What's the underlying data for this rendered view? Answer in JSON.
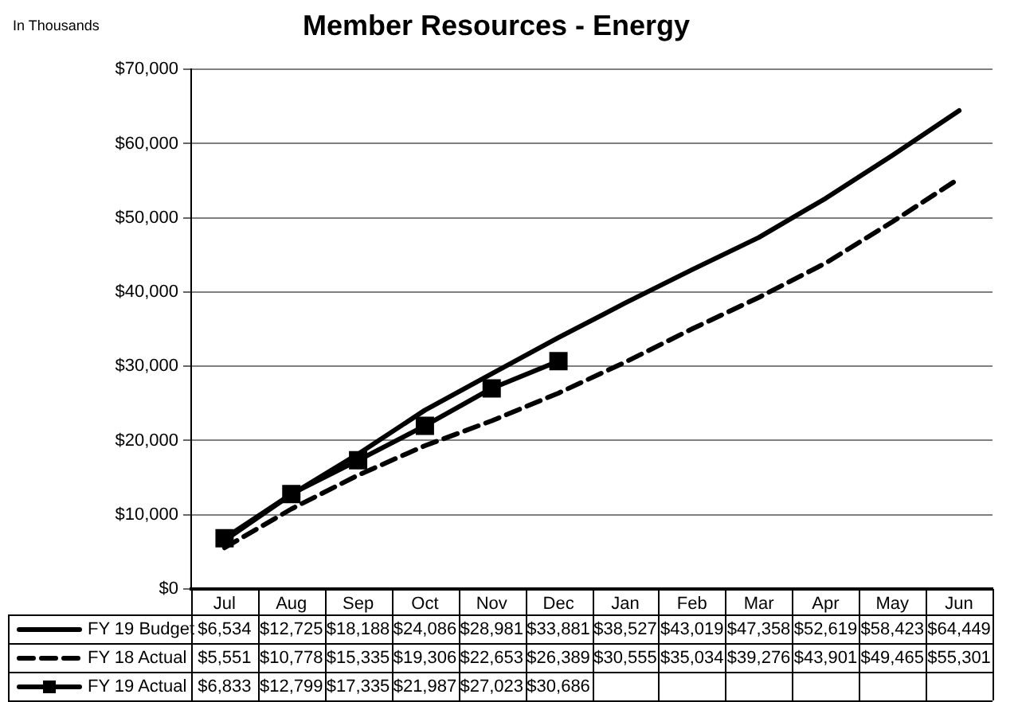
{
  "chart_data": {
    "type": "line",
    "title": "Member Resources - Energy",
    "annotations": [
      "In Thousands"
    ],
    "categories": [
      "Jul",
      "Aug",
      "Sep",
      "Oct",
      "Nov",
      "Dec",
      "Jan",
      "Feb",
      "Mar",
      "Apr",
      "May",
      "Jun"
    ],
    "series": [
      {
        "name": "FY 19 Budget",
        "color": "#000000",
        "line_style": "solid",
        "marker": "none",
        "values": [
          6534,
          12725,
          18188,
          24086,
          28981,
          33881,
          38527,
          43019,
          47358,
          52619,
          58423,
          64449
        ],
        "value_labels": [
          "$6,534",
          "$12,725",
          "$18,188",
          "$24,086",
          "$28,981",
          "$33,881",
          "$38,527",
          "$43,019",
          "$47,358",
          "$52,619",
          "$58,423",
          "$64,449"
        ]
      },
      {
        "name": "FY 18 Actual",
        "color": "#000000",
        "line_style": "dashed",
        "marker": "none",
        "values": [
          5551,
          10778,
          15335,
          19306,
          22653,
          26389,
          30555,
          35034,
          39276,
          43901,
          49465,
          55301
        ],
        "value_labels": [
          "$5,551",
          "$10,778",
          "$15,335",
          "$19,306",
          "$22,653",
          "$26,389",
          "$30,555",
          "$35,034",
          "$39,276",
          "$43,901",
          "$49,465",
          "$55,301"
        ]
      },
      {
        "name": "FY 19 Actual",
        "color": "#000000",
        "line_style": "solid",
        "marker": "square",
        "values": [
          6833,
          12799,
          17335,
          21987,
          27023,
          30686,
          null,
          null,
          null,
          null,
          null,
          null
        ],
        "value_labels": [
          "$6,833",
          "$12,799",
          "$17,335",
          "$21,987",
          "$27,023",
          "$30,686",
          null,
          null,
          null,
          null,
          null,
          null
        ]
      }
    ],
    "ylim": [
      0,
      70000
    ],
    "yticks": [
      {
        "value": 0,
        "label": "$0"
      },
      {
        "value": 10000,
        "label": "$10,000"
      },
      {
        "value": 20000,
        "label": "$20,000"
      },
      {
        "value": 30000,
        "label": "$30,000"
      },
      {
        "value": 40000,
        "label": "$40,000"
      },
      {
        "value": 50000,
        "label": "$50,000"
      },
      {
        "value": 60000,
        "label": "$60,000"
      },
      {
        "value": 70000,
        "label": "$70,000"
      }
    ],
    "grid": "y",
    "legend": "bottom"
  }
}
